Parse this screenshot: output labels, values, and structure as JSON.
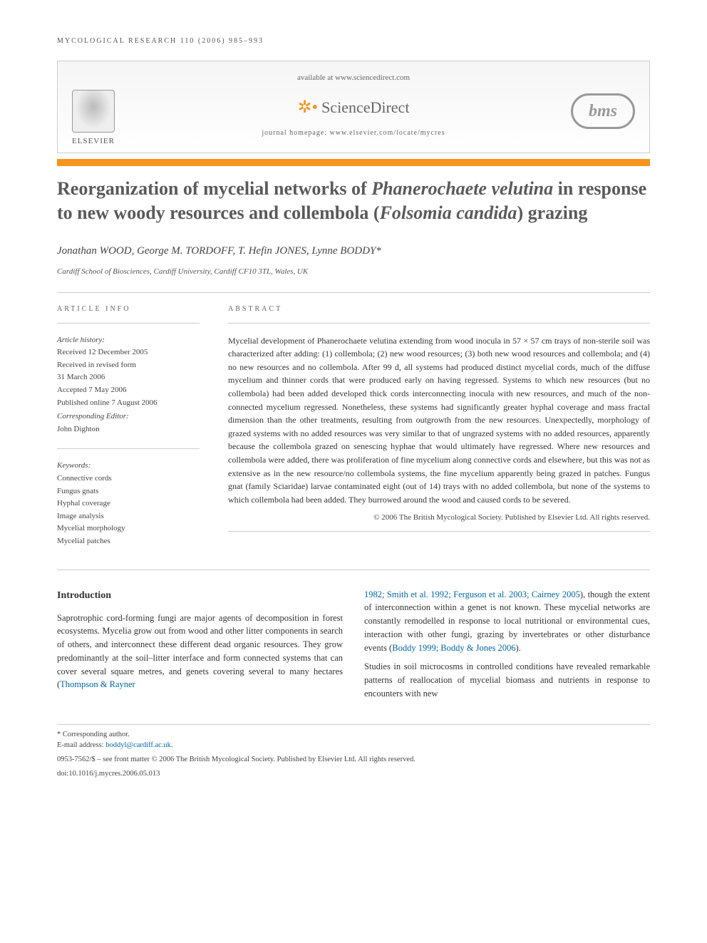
{
  "running_header": "MYCOLOGICAL RESEARCH 110 (2006) 985–993",
  "banner": {
    "available": "available at www.sciencedirect.com",
    "sciencedirect": "ScienceDirect",
    "homepage_label": "journal homepage: ",
    "homepage_url": "www.elsevier.com/locate/mycres",
    "elsevier": "ELSEVIER",
    "bms": "bms"
  },
  "title_parts": {
    "a": "Reorganization of mycelial networks of ",
    "b": "Phanerochaete velutina",
    "c": " in response to new woody resources and collembola (",
    "d": "Folsomia candida",
    "e": ") grazing"
  },
  "authors_line": "Jonathan WOOD, George M. TORDOFF, T. Hefin JONES, Lynne BODDY*",
  "affiliation": "Cardiff School of Biosciences, Cardiff University, Cardiff CF10 3TL, Wales, UK",
  "labels": {
    "article_info": "ARTICLE INFO",
    "abstract": "ABSTRACT",
    "history": "Article history:",
    "keywords": "Keywords:",
    "corr_editor": "Corresponding Editor:"
  },
  "history": {
    "received": "Received 12 December 2005",
    "revised_a": "Received in revised form",
    "revised_b": "31 March 2006",
    "accepted": "Accepted 7 May 2006",
    "published": "Published online 7 August 2006",
    "editor": "John Dighton"
  },
  "keywords": [
    "Connective cords",
    "Fungus gnats",
    "Hyphal coverage",
    "Image analysis",
    "Mycelial morphology",
    "Mycelial patches"
  ],
  "abstract": "Mycelial development of Phanerochaete velutina extending from wood inocula in 57 × 57 cm trays of non-sterile soil was characterized after adding: (1) collembola; (2) new wood resources; (3) both new wood resources and collembola; and (4) no new resources and no collembola. After 99 d, all systems had produced distinct mycelial cords, much of the diffuse mycelium and thinner cords that were produced early on having regressed. Systems to which new resources (but no collembola) had been added developed thick cords interconnecting inocula with new resources, and much of the non-connected mycelium regressed. Nonetheless, these systems had significantly greater hyphal coverage and mass fractal dimension than the other treatments, resulting from outgrowth from the new resources. Unexpectedly, morphology of grazed systems with no added resources was very similar to that of ungrazed systems with no added resources, apparently because the collembola grazed on senescing hyphae that would ultimately have regressed. Where new resources and collembola were added, there was proliferation of fine mycelium along connective cords and elsewhere, but this was not as extensive as in the new resource/no collembola systems, the fine mycelium apparently being grazed in patches. Fungus gnat (family Sciaridae) larvae contaminated eight (out of 14) trays with no added collembola, but none of the systems to which collembola had been added. They burrowed around the wood and caused cords to be severed.",
  "copyright": "© 2006 The British Mycological Society. Published by Elsevier Ltd. All rights reserved.",
  "intro": {
    "heading": "Introduction",
    "col1": "Saprotrophic cord-forming fungi are major agents of decomposition in forest ecosystems. Mycelia grow out from wood and other litter components in search of others, and interconnect these different dead organic resources. They grow predominantly at the soil–litter interface and form connected systems that can cover several square metres, and genets covering several to many hectares (",
    "col1_ref": "Thompson & Rayner",
    "col2_refs": "1982; Smith et al. 1992; Ferguson et al. 2003; Cairney 2005",
    "col2_a": "), though the extent of interconnection within a genet is not known. These mycelial networks are constantly remodelled in response to local nutritional or environmental cues, interaction with other fungi, grazing by invertebrates or other disturbance events (",
    "col2_ref2": "Boddy 1999; Boddy & Jones 2006",
    "col2_b": ").",
    "col2_p2": "Studies in soil microcosms in controlled conditions have revealed remarkable patterns of reallocation of mycelial biomass and nutrients in response to encounters with new"
  },
  "footnotes": {
    "corr": "* Corresponding author.",
    "email_label": "E-mail address: ",
    "email": "boddyl@cardiff.ac.uk",
    "line1": "0953-7562/$ – see front matter © 2006 The British Mycological Society. Published by Elsevier Ltd. All rights reserved.",
    "doi": "doi:10.1016/j.mycres.2006.05.013"
  }
}
